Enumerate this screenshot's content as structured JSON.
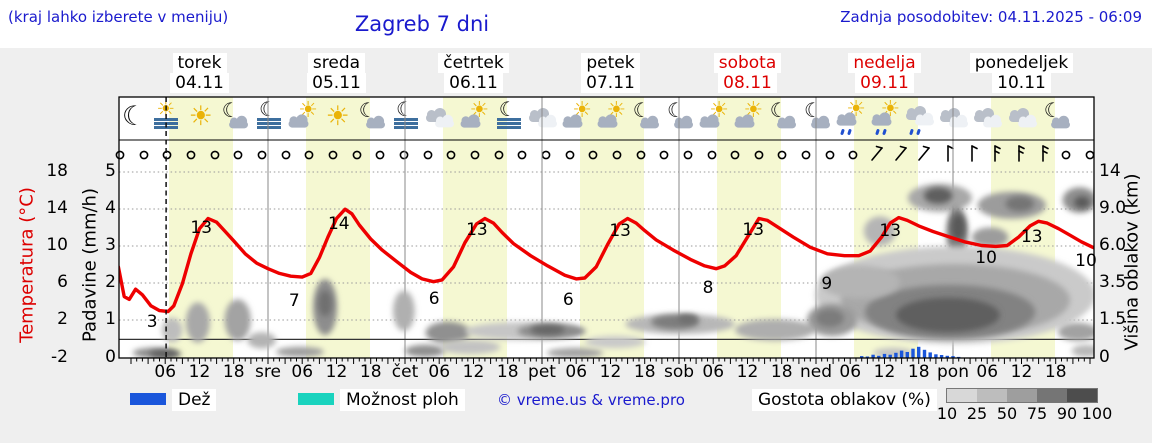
{
  "header": {
    "hint": "(kraj lahko izberete v meniju)",
    "title": "Zagreb 7 dni",
    "updated": "Zadnja posodobitev: 04.11.2025 - 06:09"
  },
  "days": [
    {
      "name": "torek",
      "date": "04.11",
      "highlight": false
    },
    {
      "name": "sreda",
      "date": "05.11",
      "highlight": false
    },
    {
      "name": "četrtek",
      "date": "06.11",
      "highlight": false
    },
    {
      "name": "petek",
      "date": "07.11",
      "highlight": false
    },
    {
      "name": "sobota",
      "date": "08.11",
      "highlight": true
    },
    {
      "name": "nedelja",
      "date": "09.11",
      "highlight": true
    },
    {
      "name": "ponedeljek",
      "date": "10.11",
      "highlight": false
    }
  ],
  "axes": {
    "temp": {
      "title": "Temperatura (°C)",
      "ticks": [
        "18",
        "14",
        "10",
        "6",
        "2",
        "-2"
      ]
    },
    "precip": {
      "title": "Padavine (mm/h)",
      "ticks": [
        "5",
        "4",
        "3",
        "2",
        "1",
        "0"
      ]
    },
    "cloud": {
      "title": "Višina oblakov (km)",
      "ticks": [
        "14",
        "9.0",
        "6.0",
        "3.5",
        "1.5",
        "0"
      ]
    },
    "bottom_labels": [
      "06",
      "12",
      "18",
      "sre",
      "06",
      "12",
      "18",
      "čet",
      "06",
      "12",
      "18",
      "pet",
      "06",
      "12",
      "18",
      "sob",
      "06",
      "12",
      "18",
      "ned",
      "06",
      "12",
      "18",
      "pon",
      "06",
      "12",
      "18"
    ]
  },
  "legend": {
    "rain_label": "Dež",
    "showers_label": "Možnost ploh",
    "copyright": "© vreme.us & vreme.pro",
    "cloud_density_label": "Gostota oblakov (%)",
    "cloud_scale_labels": [
      "10",
      "25",
      "50",
      "75",
      "90",
      "100"
    ],
    "cloud_scale_colors": [
      "#d8d8d8",
      "#bdbdbd",
      "#9e9e9e",
      "#757575",
      "#4d4d4d"
    ]
  },
  "colors": {
    "header_blue": "#1a1acd",
    "weekend_red": "#dd0000",
    "temp_curve": "#ee0000",
    "rain": "#1a56db",
    "showers": "#19d3be",
    "daylight_band": "#f5f8d2"
  },
  "weather_icons": [
    "moon",
    "fog-sun",
    "sun",
    "moon-cloud",
    "fog-moon",
    "sun-cloud",
    "sun",
    "moon-cloud",
    "fog-moon",
    "clouds",
    "sun-cloud",
    "fog-moon",
    "clouds",
    "sun-cloud",
    "sun-cloud",
    "moon-cloud",
    "moon-cloud",
    "sun-cloud",
    "sun-cloud",
    "moon-cloud",
    "moon-cloud",
    "sun-cloud-rain",
    "sun-cloud-rain",
    "clouds-rain",
    "clouds",
    "clouds",
    "clouds",
    "moon-cloud"
  ],
  "wind_symbols": [
    "calm",
    "calm",
    "calm",
    "calm",
    "calm",
    "calm",
    "calm",
    "calm",
    "calm",
    "calm",
    "calm",
    "calm",
    "calm",
    "calm",
    "calm",
    "calm",
    "calm",
    "calm",
    "calm",
    "calm",
    "calm",
    "calm",
    "calm",
    "calm",
    "calm",
    "calm",
    "calm",
    "calm",
    "calm",
    "calm",
    "calm",
    "calm",
    "diag",
    "diag",
    "diag",
    "barb1",
    "barb1",
    "barb2",
    "barb2",
    "barb2",
    "calm",
    "calm"
  ],
  "chart_data": {
    "type": "line",
    "title": "Zagreb 7 dni",
    "x_unit": "hours since 04.11.2025 00:00",
    "now_hour": 6.15,
    "freezing_line_c": 0,
    "temp_axis_c": [
      18,
      14,
      10,
      6,
      2,
      -2
    ],
    "precip_axis_mm_h": [
      5,
      4,
      3,
      2,
      1,
      0
    ],
    "cloud_axis_km": [
      0,
      1.5,
      3.5,
      6,
      9,
      14
    ],
    "daylight_band_hours": {
      "start": 6.6,
      "end": 17.8
    },
    "temperature_series": [
      [
        -2.2,
        7.8
      ],
      [
        -1.2,
        4.6
      ],
      [
        -0.3,
        4.3
      ],
      [
        0.8,
        5.4
      ],
      [
        2,
        4.8
      ],
      [
        3.5,
        3.6
      ],
      [
        5,
        3.1
      ],
      [
        6.5,
        3
      ],
      [
        7.5,
        3.6
      ],
      [
        9,
        6
      ],
      [
        10.5,
        9.2
      ],
      [
        12,
        11.9
      ],
      [
        13.5,
        13
      ],
      [
        15,
        12.6
      ],
      [
        16.5,
        11.6
      ],
      [
        18,
        10.6
      ],
      [
        20,
        9.2
      ],
      [
        22,
        8.2
      ],
      [
        24,
        7.6
      ],
      [
        26,
        7.1
      ],
      [
        28,
        6.8
      ],
      [
        30,
        6.7
      ],
      [
        31.5,
        7.1
      ],
      [
        33,
        8.8
      ],
      [
        34.5,
        11
      ],
      [
        36,
        13
      ],
      [
        37.5,
        14
      ],
      [
        38.7,
        13.5
      ],
      [
        40,
        12.3
      ],
      [
        42,
        10.8
      ],
      [
        44,
        9.6
      ],
      [
        46.5,
        8.4
      ],
      [
        49,
        7.2
      ],
      [
        51,
        6.5
      ],
      [
        53,
        6.2
      ],
      [
        54.5,
        6.4
      ],
      [
        56.5,
        7.8
      ],
      [
        58.5,
        10.4
      ],
      [
        60.5,
        12.4
      ],
      [
        62,
        13
      ],
      [
        63.5,
        12.5
      ],
      [
        65,
        11.5
      ],
      [
        67,
        10.3
      ],
      [
        70,
        9
      ],
      [
        73,
        7.9
      ],
      [
        76,
        6.9
      ],
      [
        78,
        6.5
      ],
      [
        79.5,
        6.6
      ],
      [
        81.5,
        7.8
      ],
      [
        83.5,
        10.2
      ],
      [
        85.5,
        12.4
      ],
      [
        87,
        13
      ],
      [
        88.5,
        12.5
      ],
      [
        90,
        11.7
      ],
      [
        92,
        10.7
      ],
      [
        95,
        9.6
      ],
      [
        98,
        8.6
      ],
      [
        100.5,
        7.9
      ],
      [
        102.5,
        7.6
      ],
      [
        104,
        7.9
      ],
      [
        106,
        9
      ],
      [
        108.5,
        11.5
      ],
      [
        110,
        13
      ],
      [
        111.5,
        12.8
      ],
      [
        113.5,
        12
      ],
      [
        116,
        11
      ],
      [
        119,
        9.9
      ],
      [
        122,
        9.2
      ],
      [
        125,
        9
      ],
      [
        127.5,
        9
      ],
      [
        129.5,
        9.5
      ],
      [
        131.5,
        11
      ],
      [
        133,
        12.5
      ],
      [
        134.5,
        13.1
      ],
      [
        136,
        12.8
      ],
      [
        138,
        12.2
      ],
      [
        140.5,
        11.6
      ],
      [
        143,
        11.1
      ],
      [
        146,
        10.5
      ],
      [
        149,
        10.1
      ],
      [
        151.5,
        10
      ],
      [
        153.5,
        10.1
      ],
      [
        155.5,
        11
      ],
      [
        157.5,
        12.2
      ],
      [
        159,
        12.7
      ],
      [
        160.5,
        12.5
      ],
      [
        162.5,
        11.9
      ],
      [
        164.5,
        11.2
      ],
      [
        166.5,
        10.5
      ],
      [
        168.5,
        9.9
      ],
      [
        169.8,
        9.6
      ]
    ],
    "temperature_point_labels": [
      [
        "3",
        3.7,
        1.9
      ],
      [
        "13",
        12.3,
        12.0
      ],
      [
        "7",
        28.6,
        4.1
      ],
      [
        "14",
        36.4,
        12.4
      ],
      [
        "6",
        53.1,
        4.3
      ],
      [
        "13",
        60.6,
        11.8
      ],
      [
        "6",
        76.6,
        4.2
      ],
      [
        "13",
        85.7,
        11.7
      ],
      [
        "8",
        101.1,
        5.5
      ],
      [
        "13",
        109,
        11.8
      ],
      [
        "9",
        121.9,
        6.0
      ],
      [
        "13",
        133,
        11.7
      ],
      [
        "10",
        149.8,
        8.7
      ],
      [
        "13",
        157.8,
        11.0
      ],
      [
        "10",
        167.3,
        8.4
      ]
    ],
    "rain_bars_mm_h": [
      [
        128,
        0.05
      ],
      [
        129,
        0.04
      ],
      [
        130,
        0.09
      ],
      [
        131,
        0.06
      ],
      [
        132,
        0.11
      ],
      [
        133,
        0.09
      ],
      [
        134,
        0.14
      ],
      [
        135,
        0.2
      ],
      [
        136,
        0.16
      ],
      [
        137,
        0.25
      ],
      [
        138,
        0.3
      ],
      [
        139,
        0.22
      ],
      [
        140,
        0.15
      ],
      [
        141,
        0.1
      ],
      [
        142,
        0.08
      ],
      [
        143,
        0.06
      ],
      [
        144,
        0.05
      ],
      [
        145,
        0.03
      ]
    ],
    "cloud_blobs": [
      [
        4.2,
        0.2,
        3.9,
        0.2,
        "#8a8a8a"
      ],
      [
        6,
        0.16,
        2.8,
        0.16,
        "#5f5f5f"
      ],
      [
        7.2,
        1.1,
        1.8,
        0.5,
        "#bdbdbd"
      ],
      [
        11.7,
        1.4,
        2.1,
        0.9,
        "#a8a8a8"
      ],
      [
        18.7,
        1.5,
        2.3,
        0.95,
        "#a3a3a3"
      ],
      [
        22.9,
        0.7,
        2.5,
        0.32,
        "#b3b3b3"
      ],
      [
        29.6,
        0.24,
        4.2,
        0.2,
        "#9e9e9e"
      ],
      [
        34,
        2.2,
        2.1,
        1.4,
        "#8d8d8d"
      ],
      [
        34,
        2.4,
        1.2,
        0.7,
        "#6f6f6f"
      ],
      [
        47.8,
        2.0,
        1.9,
        1.0,
        "#b0b0b0"
      ],
      [
        51.5,
        0.28,
        3.5,
        0.24,
        "#8f8f8f"
      ],
      [
        55.5,
        1.0,
        3.9,
        0.44,
        "#909090"
      ],
      [
        59.4,
        0.43,
        5.3,
        0.28,
        "#c2c2c2"
      ],
      [
        68.7,
        1.06,
        10.2,
        0.36,
        "#c6c6c6"
      ],
      [
        73.7,
        1.06,
        6,
        0.28,
        "#8a8a8a"
      ],
      [
        73,
        1.11,
        3,
        0.2,
        "#666666"
      ],
      [
        77.8,
        0.2,
        4.9,
        0.2,
        "#a3a3a3"
      ],
      [
        84.8,
        0.63,
        5.3,
        0.24,
        "#c9c9c9"
      ],
      [
        96.2,
        1.34,
        9.6,
        0.43,
        "#b7b7b7"
      ],
      [
        95.3,
        1.42,
        4.2,
        0.32,
        "#7d7d7d"
      ],
      [
        97.6,
        1.55,
        1.8,
        0.22,
        "#6e6e6e"
      ],
      [
        112.8,
        1.11,
        7,
        0.43,
        "#aeaeae"
      ],
      [
        131.2,
        7.2,
        2.8,
        1.2,
        "#b5b5b5"
      ],
      [
        141.7,
        10.5,
        5.6,
        1.8,
        "#a8a8a8"
      ],
      [
        141.4,
        10.8,
        2.5,
        1.1,
        "#5e5e5e"
      ],
      [
        154.3,
        9.5,
        6,
        1.5,
        "#9c9c9c"
      ],
      [
        155.7,
        9.7,
        2.5,
        0.95,
        "#747474"
      ],
      [
        166.2,
        10.2,
        3,
        1.6,
        "#8f8f8f"
      ],
      [
        166.6,
        9.9,
        1.4,
        0.8,
        "#5a5a5a"
      ],
      [
        144.7,
        7.1,
        1.9,
        2.0,
        "#7d7d7d"
      ],
      [
        144.9,
        7.5,
        1.2,
        1.05,
        "#595959"
      ],
      [
        150.5,
        6.7,
        3.2,
        0.8,
        "#9c9c9c"
      ],
      [
        144.4,
        2.85,
        24.5,
        2.6,
        "#cacaca"
      ],
      [
        144.4,
        2.57,
        20.1,
        1.9,
        "#a8a8a8"
      ],
      [
        143.5,
        1.93,
        14.9,
        1.3,
        "#828282"
      ],
      [
        143.1,
        1.77,
        9.1,
        0.83,
        "#5f5f5f"
      ],
      [
        127.7,
        3.57,
        7,
        1.0,
        "#b4b4b4"
      ],
      [
        122.8,
        1.5,
        4.4,
        0.75,
        "#9a9a9a"
      ],
      [
        122.4,
        1.6,
        2.5,
        0.43,
        "#7c7c7c"
      ],
      [
        133.5,
        0.2,
        3.5,
        0.2,
        "#c2c2c2"
      ],
      [
        165.9,
        1.03,
        3.5,
        0.36,
        "#a2a2a2"
      ],
      [
        167.3,
        0.28,
        2.5,
        0.24,
        "#b8b8b8"
      ]
    ]
  }
}
